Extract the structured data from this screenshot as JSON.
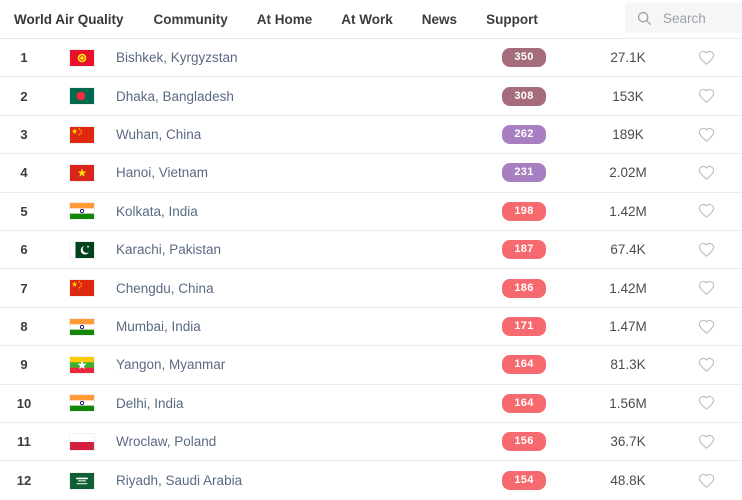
{
  "header": {
    "brand": "World Air Quality",
    "nav": [
      {
        "label": "Community"
      },
      {
        "label": "At Home"
      },
      {
        "label": "At Work"
      },
      {
        "label": "News"
      },
      {
        "label": "Support"
      }
    ],
    "search": {
      "placeholder": "Search",
      "icon": "search-icon"
    }
  },
  "colors": {
    "hazardous": "#a56d7c",
    "very_unhealthy": "#a87fc1",
    "unhealthy": "#f6696e",
    "city_text": "#5a6a83",
    "heart_stroke": "#b7c1cd"
  },
  "icons": {
    "heart": "heart-icon",
    "search": "search-icon"
  },
  "rows": [
    {
      "rank": "1",
      "flag": "kg",
      "flag_icon": "flag-kyrgyzstan-icon",
      "city": "Bishkek, Kyrgyzstan",
      "aqi": "350",
      "level": "hazardous",
      "followers": "27.1K"
    },
    {
      "rank": "2",
      "flag": "bd",
      "flag_icon": "flag-bangladesh-icon",
      "city": "Dhaka, Bangladesh",
      "aqi": "308",
      "level": "hazardous",
      "followers": "153K"
    },
    {
      "rank": "3",
      "flag": "cn",
      "flag_icon": "flag-china-icon",
      "city": "Wuhan, China",
      "aqi": "262",
      "level": "very_unhealthy",
      "followers": "189K"
    },
    {
      "rank": "4",
      "flag": "vn",
      "flag_icon": "flag-vietnam-icon",
      "city": "Hanoi, Vietnam",
      "aqi": "231",
      "level": "very_unhealthy",
      "followers": "2.02M"
    },
    {
      "rank": "5",
      "flag": "in",
      "flag_icon": "flag-india-icon",
      "city": "Kolkata, India",
      "aqi": "198",
      "level": "unhealthy",
      "followers": "1.42M"
    },
    {
      "rank": "6",
      "flag": "pk",
      "flag_icon": "flag-pakistan-icon",
      "city": "Karachi, Pakistan",
      "aqi": "187",
      "level": "unhealthy",
      "followers": "67.4K"
    },
    {
      "rank": "7",
      "flag": "cn",
      "flag_icon": "flag-china-icon",
      "city": "Chengdu, China",
      "aqi": "186",
      "level": "unhealthy",
      "followers": "1.42M"
    },
    {
      "rank": "8",
      "flag": "in",
      "flag_icon": "flag-india-icon",
      "city": "Mumbai, India",
      "aqi": "171",
      "level": "unhealthy",
      "followers": "1.47M"
    },
    {
      "rank": "9",
      "flag": "mm",
      "flag_icon": "flag-myanmar-icon",
      "city": "Yangon, Myanmar",
      "aqi": "164",
      "level": "unhealthy",
      "followers": "81.3K"
    },
    {
      "rank": "10",
      "flag": "in",
      "flag_icon": "flag-india-icon",
      "city": "Delhi, India",
      "aqi": "164",
      "level": "unhealthy",
      "followers": "1.56M"
    },
    {
      "rank": "11",
      "flag": "pl",
      "flag_icon": "flag-poland-icon",
      "city": "Wroclaw, Poland",
      "aqi": "156",
      "level": "unhealthy",
      "followers": "36.7K"
    },
    {
      "rank": "12",
      "flag": "sa",
      "flag_icon": "flag-saudi-arabia-icon",
      "city": "Riyadh, Saudi Arabia",
      "aqi": "154",
      "level": "unhealthy",
      "followers": "48.8K"
    }
  ]
}
